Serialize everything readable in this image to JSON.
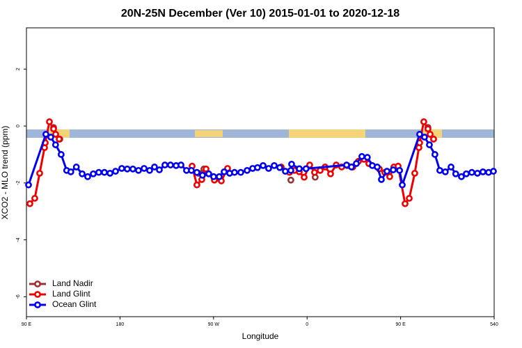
{
  "chart_data": {
    "type": "line",
    "title": "20N-25N December (Ver 10)   2015-01-01 to 2020-12-18",
    "x_label": "Longitude",
    "y_label": "XCO2 - MLO trend (ppm)",
    "xlim": [
      90,
      540
    ],
    "xticks": [
      {
        "value": 90,
        "label": "90 E"
      },
      180,
      {
        "value": 270,
        "label": "90 W"
      },
      {
        "value": 360,
        "label": "0"
      },
      {
        "value": 450,
        "label": "90 E"
      },
      540
    ],
    "ylim": [
      -6.7,
      3.45
    ],
    "yticks": [
      -6,
      -4,
      -2,
      0,
      2
    ],
    "legend": "bottom-left",
    "series": [
      {
        "name": "Land Nadir",
        "color": "#993333",
        "x": [
          116.1,
          122.1,
          190,
          255.4,
          260.7,
          300,
          344.4,
          355,
          367.8,
          400,
          476.3,
          481.7
        ],
        "values": [
          -0.05,
          -0.46,
          null,
          -1.66,
          -1.51,
          null,
          -1.9,
          null,
          -1.8,
          null,
          -0.05,
          -0.46
        ]
      },
      {
        "name": "Land Glint",
        "color": "#ee0000",
        "x": [
          93.3,
          98,
          102.7,
          107.4,
          108.1,
          112.1,
          116.1,
          118.1,
          121.5,
          190,
          249.4,
          254,
          258.7,
          262.8,
          270.8,
          277.5,
          283.5,
          310,
          335.1,
          343.1,
          347.8,
          352.5,
          357.2,
          362.5,
          367.2,
          372.6,
          377.3,
          382.6,
          388,
          393.3,
          398.7,
          404,
          409.4,
          414.8,
          419.4,
          429.5,
          434.8,
          439.5,
          443.5,
          447.6,
          454.3,
          458.3,
          463.6,
          467.6,
          468.3,
          472.3,
          476.3,
          478.4,
          481.7
        ],
        "values": [
          -2.73,
          -2.54,
          -1.66,
          -0.76,
          -0.59,
          0.15,
          -0.1,
          -0.29,
          -0.46,
          null,
          -1.41,
          -2.07,
          -1.88,
          -1.51,
          -1.9,
          -1.93,
          -1.49,
          null,
          -1.44,
          -1.63,
          -1.56,
          -1.61,
          -1.8,
          -1.37,
          -1.63,
          -1.56,
          -1.44,
          -1.68,
          -1.37,
          -1.44,
          -1.39,
          -1.44,
          -1.24,
          -1.17,
          -1.32,
          -1.51,
          -1.63,
          -1.78,
          -1.44,
          -1.41,
          -2.73,
          -2.54,
          -1.66,
          -0.76,
          -0.59,
          0.15,
          -0.1,
          -0.29,
          -0.46
        ]
      },
      {
        "name": "Ocean Glint",
        "color": "#0000ee",
        "x": [
          92,
          108.7,
          113.4,
          118,
          123.4,
          128.7,
          132.7,
          138,
          143.6,
          148.9,
          154.3,
          159.6,
          165,
          170.4,
          175.7,
          181.7,
          187,
          192.4,
          197.8,
          203.2,
          208.5,
          213.2,
          217.9,
          223.2,
          228.6,
          234,
          238.7,
          244,
          248.7,
          254,
          259.4,
          265.4,
          270.1,
          275.5,
          280.2,
          285.5,
          290.2,
          296.2,
          302.3,
          307.6,
          312.3,
          317.7,
          323,
          328.4,
          333.7,
          339.1,
          344.4,
          345.1,
          352.5,
          359,
          398,
          402.7,
          407.4,
          412.7,
          418,
          422.8,
          427.5,
          431.5,
          436.9,
          442.9,
          449,
          451.6,
          468.3,
          473,
          477.7,
          483,
          487.7,
          493,
          498.5,
          503,
          508.5,
          513.2,
          518.5,
          523.9,
          529.2,
          534.6,
          539.3
        ],
        "values": [
          -2.07,
          -0.29,
          -0.39,
          -0.66,
          -1.0,
          -1.56,
          -1.61,
          -1.44,
          -1.68,
          -1.78,
          -1.68,
          -1.63,
          -1.63,
          -1.66,
          -1.59,
          -1.49,
          -1.51,
          -1.51,
          -1.56,
          -1.49,
          -1.56,
          -1.44,
          -1.54,
          -1.37,
          -1.37,
          -1.39,
          -1.37,
          -1.56,
          -1.56,
          -1.63,
          -1.73,
          -1.68,
          -1.78,
          -1.78,
          -1.61,
          -1.66,
          -1.63,
          -1.63,
          -1.56,
          -1.49,
          -1.46,
          -1.39,
          -1.49,
          -1.39,
          -1.46,
          -1.59,
          -1.56,
          -1.34,
          -1.5,
          -1.5,
          -1.37,
          -1.44,
          -1.32,
          -1.07,
          -1.1,
          -1.39,
          -1.44,
          -1.88,
          -1.59,
          -1.54,
          -1.56,
          -2.07,
          -0.29,
          -0.39,
          -0.66,
          -1.0,
          -1.56,
          -1.61,
          -1.44,
          -1.68,
          -1.78,
          -1.68,
          -1.63,
          -1.66,
          -1.61,
          -1.63,
          -1.59
        ]
      }
    ]
  }
}
